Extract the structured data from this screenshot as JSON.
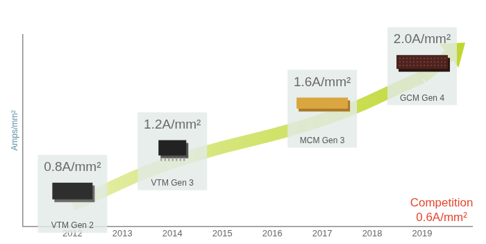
{
  "chart_data": {
    "type": "line",
    "x": [
      2012,
      2014,
      2017,
      2019
    ],
    "values": [
      0.8,
      1.2,
      1.6,
      2.0
    ],
    "value_labels": [
      "0.8A/mm²",
      "1.2A/mm²",
      "1.6A/mm²",
      "2.0A/mm²"
    ],
    "point_labels": [
      "VTM Gen 2",
      "VTM Gen 3",
      "MCM Gen 3",
      "GCM Gen 4"
    ],
    "color": "#bfd730",
    "xlim": [
      2011,
      2020
    ],
    "xticks": [
      2012,
      2013,
      2014,
      2015,
      2016,
      2017,
      2018,
      2019
    ],
    "ylim": [
      0.6,
      2.4
    ],
    "yticks": [],
    "y_label": "Amps/mm²",
    "tick_labels": "x",
    "grid": false,
    "data_labels": true,
    "annotations": [
      {
        "text": "Competition",
        "value": 0.6,
        "value_label": "0.6A/mm²",
        "x": 2019,
        "color": "#e8452c"
      }
    ]
  }
}
